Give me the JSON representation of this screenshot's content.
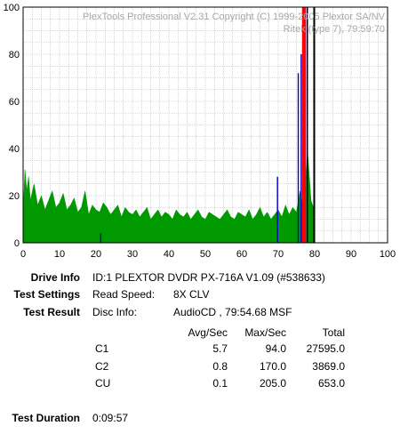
{
  "chart_data": {
    "type": "bar",
    "title": "",
    "watermark_line1": "PlexTools Professional V2.31 Copyright (C) 1999-2005 Plextor SA/NV",
    "watermark_line2": "Ritek (type 7), 79:59:70",
    "xlabel": "",
    "ylabel": "",
    "xlim": [
      0,
      100
    ],
    "ylim": [
      0,
      100
    ],
    "x_ticks": [
      "0",
      "10",
      "20",
      "30",
      "40",
      "50",
      "60",
      "70",
      "80",
      "90",
      "100"
    ],
    "y_ticks": [
      "0",
      "20",
      "40",
      "60",
      "80",
      "100"
    ],
    "grid": true,
    "x_minor_step": 2.5,
    "y_minor_step": 5,
    "disc_end_minute": 80,
    "series": [
      {
        "kind": "c1_area",
        "color": "#009900",
        "x_end": 79.9,
        "x": [
          0,
          0.5,
          1,
          1.5,
          2,
          3,
          4,
          5,
          6,
          7,
          8,
          9,
          10,
          11,
          12,
          13,
          14,
          15,
          16,
          17,
          18,
          19,
          20,
          21,
          22,
          23,
          24,
          25,
          26,
          27,
          28,
          29,
          30,
          31,
          32,
          33,
          34,
          35,
          36,
          37,
          38,
          39,
          40,
          41,
          42,
          43,
          44,
          45,
          46,
          47,
          48,
          49,
          50,
          51,
          52,
          53,
          54,
          55,
          56,
          57,
          58,
          59,
          60,
          61,
          62,
          63,
          64,
          65,
          66,
          67,
          68,
          69,
          70,
          71,
          72,
          73,
          74,
          75,
          76,
          77,
          78,
          79,
          79.9
        ],
        "values": [
          12,
          31,
          22,
          28,
          18,
          25,
          16,
          20,
          14,
          18,
          22,
          15,
          17,
          21,
          14,
          16,
          19,
          13,
          15,
          22,
          12,
          16,
          14,
          13,
          17,
          15,
          12,
          14,
          16,
          11,
          15,
          13,
          12,
          14,
          11,
          13,
          15,
          10,
          12,
          14,
          11,
          13,
          12,
          10,
          14,
          12,
          11,
          13,
          10,
          12,
          14,
          11,
          10,
          13,
          12,
          11,
          10,
          12,
          14,
          11,
          10,
          13,
          12,
          11,
          14,
          10,
          12,
          15,
          11,
          13,
          10,
          12,
          14,
          11,
          16,
          12,
          15,
          13,
          22,
          14,
          40,
          18,
          14
        ]
      },
      {
        "kind": "c2_spikes",
        "color": "#0000cc",
        "x": [
          21.3,
          69.8,
          75.5,
          76.3
        ],
        "values": [
          4,
          28,
          72,
          80
        ]
      },
      {
        "kind": "read_speed",
        "color": "#ff0000",
        "x": [
          76.8,
          77.3
        ],
        "values": [
          100,
          100
        ]
      },
      {
        "kind": "cu_marker",
        "color": "#cc00cc",
        "x": [
          77.9
        ],
        "values": [
          100
        ]
      },
      {
        "kind": "cu_black",
        "color": "#000000",
        "x": [
          78.0,
          79.8
        ],
        "values": [
          100,
          100
        ]
      }
    ]
  },
  "info": {
    "drive_info_label": "Drive Info",
    "drive_info_value": "ID:1 PLEXTOR DVDR PX-716A V1.09 (#538633)",
    "test_settings_label": "Test Settings",
    "read_speed_label": "Read Speed:",
    "read_speed_value": "8X CLV",
    "test_result_label": "Test Result",
    "disc_info_label": "Disc Info:",
    "disc_info_value": "AudioCD , 79:54.68 MSF",
    "test_duration_label": "Test Duration",
    "test_duration_value": "0:09:57"
  },
  "results_table": {
    "headers": [
      "Avg/Sec",
      "Max/Sec",
      "Total"
    ],
    "rows": [
      {
        "name": "C1",
        "avg": "5.7",
        "max": "94.0",
        "total": "27595.0"
      },
      {
        "name": "C2",
        "avg": "0.8",
        "max": "170.0",
        "total": "3869.0"
      },
      {
        "name": "CU",
        "avg": "0.1",
        "max": "205.0",
        "total": "653.0"
      }
    ]
  }
}
